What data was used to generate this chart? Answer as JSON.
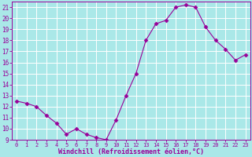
{
  "x": [
    0,
    1,
    2,
    3,
    4,
    5,
    6,
    7,
    8,
    9,
    10,
    11,
    12,
    13,
    14,
    15,
    16,
    17,
    18,
    19,
    20,
    21,
    22,
    23
  ],
  "y": [
    12.5,
    12.3,
    12.0,
    11.2,
    10.5,
    9.5,
    10.0,
    9.5,
    9.2,
    9.0,
    10.8,
    13.0,
    15.0,
    18.0,
    19.5,
    19.8,
    21.0,
    21.2,
    21.0,
    19.2,
    18.0,
    17.2,
    16.2,
    16.7
  ],
  "ylim": [
    9,
    21.5
  ],
  "yticks": [
    9,
    10,
    11,
    12,
    13,
    14,
    15,
    16,
    17,
    18,
    19,
    20,
    21
  ],
  "xtick_labels": [
    "0",
    "1",
    "2",
    "3",
    "4",
    "5",
    "6",
    "7",
    "8",
    "9",
    "10",
    "11",
    "12",
    "13",
    "14",
    "15",
    "16",
    "17",
    "18",
    "19",
    "20",
    "21",
    "22",
    "23"
  ],
  "xlabel": "Windchill (Refroidissement éolien,°C)",
  "line_color": "#990099",
  "marker": "D",
  "marker_size": 2.5,
  "background_color": "#aae8e8",
  "grid_color": "#cceeee",
  "tick_color": "#990099",
  "label_color": "#990099",
  "spine_color": "#990099"
}
